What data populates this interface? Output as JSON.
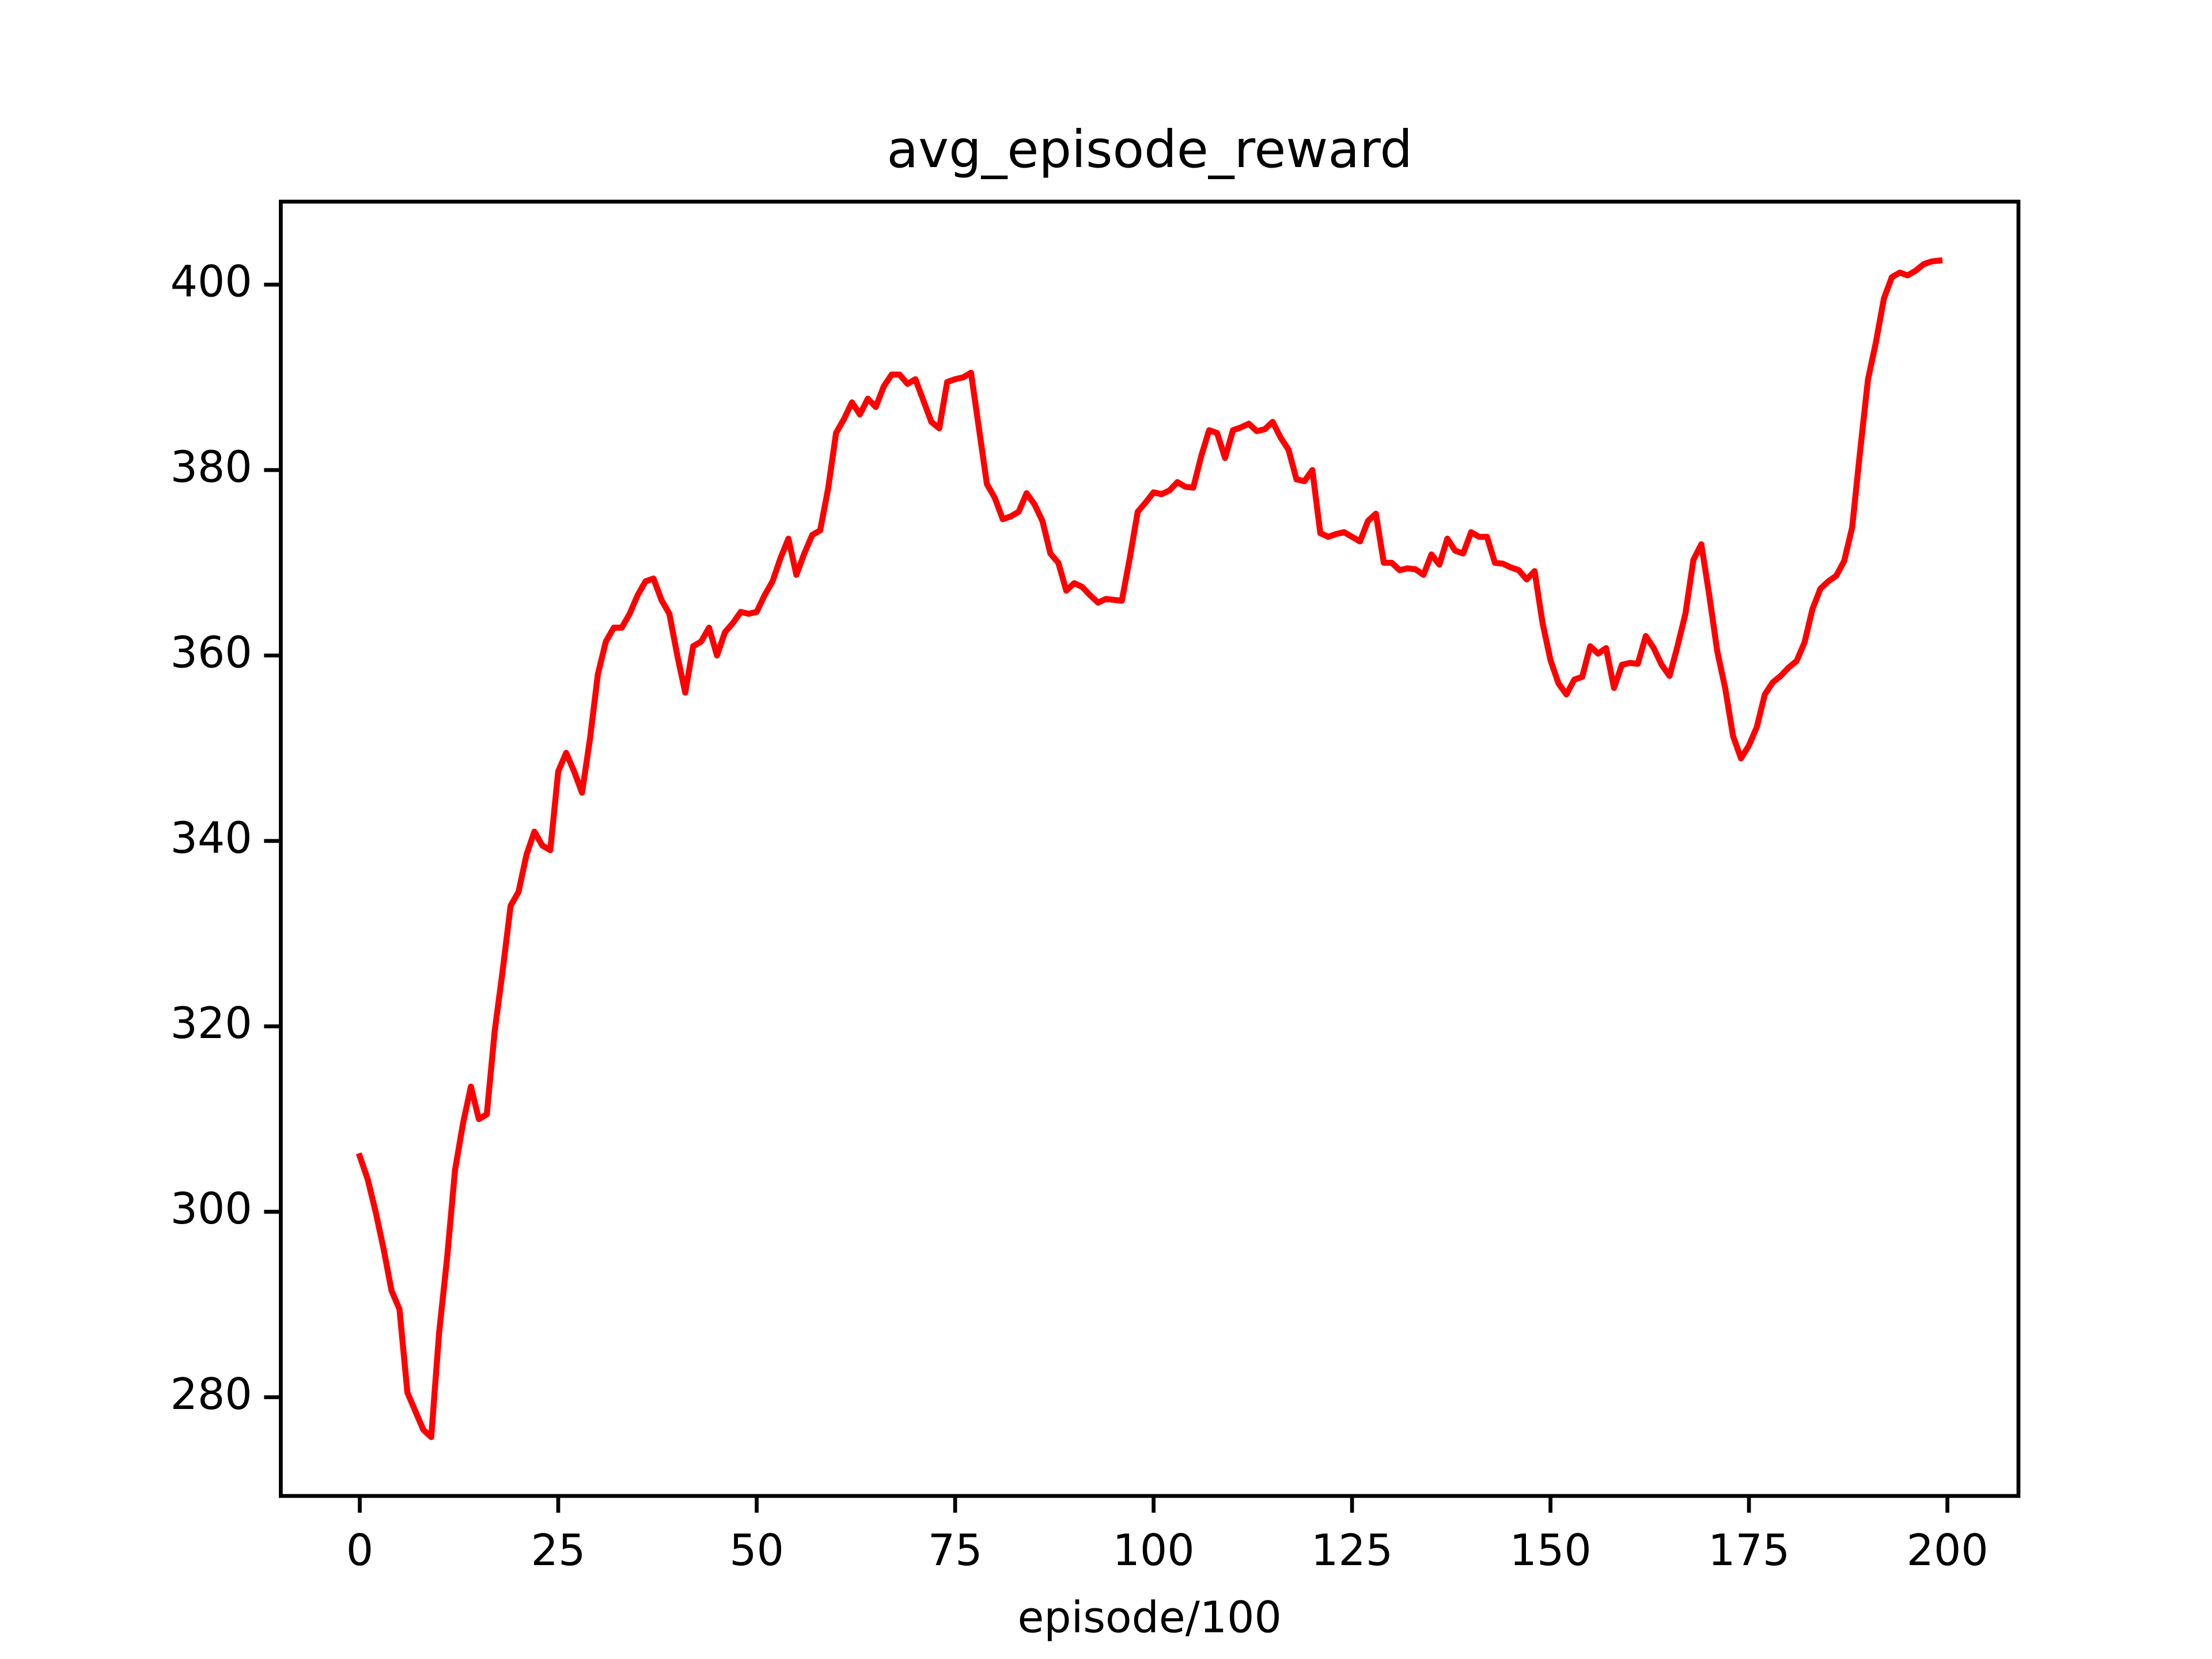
{
  "chart_data": {
    "type": "line",
    "title": "avg_episode_reward",
    "xlabel": "episode/100",
    "x": [
      0,
      1,
      2,
      3,
      4,
      5,
      6,
      7,
      8,
      9,
      10,
      11,
      12,
      13,
      14,
      15,
      16,
      17,
      18,
      19,
      20,
      21,
      22,
      23,
      24,
      25,
      26,
      27,
      28,
      29,
      30,
      31,
      32,
      33,
      34,
      35,
      36,
      37,
      38,
      39,
      40,
      41,
      42,
      43,
      44,
      45,
      46,
      47,
      48,
      49,
      50,
      51,
      52,
      53,
      54,
      55,
      56,
      57,
      58,
      59,
      60,
      61,
      62,
      63,
      64,
      65,
      66,
      67,
      68,
      69,
      70,
      71,
      72,
      73,
      74,
      75,
      76,
      77,
      78,
      79,
      80,
      81,
      82,
      83,
      84,
      85,
      86,
      87,
      88,
      89,
      90,
      91,
      92,
      93,
      94,
      95,
      96,
      97,
      98,
      99,
      100,
      101,
      102,
      103,
      104,
      105,
      106,
      107,
      108,
      109,
      110,
      111,
      112,
      113,
      114,
      115,
      116,
      117,
      118,
      119,
      120,
      121,
      122,
      123,
      124,
      125,
      126,
      127,
      128,
      129,
      130,
      131,
      132,
      133,
      134,
      135,
      136,
      137,
      138,
      139,
      140,
      141,
      142,
      143,
      144,
      145,
      146,
      147,
      148,
      149,
      150,
      151,
      152,
      153,
      154,
      155,
      156,
      157,
      158,
      159,
      160,
      161,
      162,
      163,
      164,
      165,
      166,
      167,
      168,
      169,
      170,
      171,
      172,
      173,
      174,
      175,
      176,
      177,
      178,
      179,
      180,
      181,
      182,
      183,
      184,
      185,
      186,
      187,
      188,
      189,
      190,
      191,
      192,
      193,
      194,
      195,
      196,
      197,
      198,
      199
    ],
    "series": [
      {
        "name": "avg_episode_reward",
        "color": "#ff0000",
        "values": [
          306,
          303.5,
          300,
          296,
          291.5,
          289.5,
          280.5,
          278.5,
          276.5,
          275.7,
          287,
          295,
          304.5,
          309.5,
          313.5,
          310,
          310.5,
          319.5,
          326,
          333,
          334.5,
          338.5,
          341,
          339.5,
          339,
          347.5,
          349.5,
          347.5,
          345.2,
          351,
          358,
          361.5,
          363,
          363,
          364.5,
          366.5,
          368,
          368.3,
          366,
          364.5,
          360,
          356,
          361,
          361.5,
          363,
          360,
          362.5,
          363.5,
          364.7,
          364.5,
          364.7,
          366.5,
          368,
          370.5,
          372.6,
          368.7,
          371,
          373,
          373.5,
          378,
          384,
          385.5,
          387.3,
          386,
          387.7,
          386.8,
          389,
          390.3,
          390.3,
          389.3,
          389.8,
          387.5,
          385.2,
          384.5,
          389.5,
          389.8,
          390,
          390.5,
          384.5,
          378.5,
          377,
          374.7,
          375,
          375.5,
          377.5,
          376.3,
          374.5,
          371,
          370,
          367,
          367.8,
          367.4,
          366.5,
          365.7,
          366.1,
          366,
          365.9,
          370.5,
          375.5,
          376.5,
          377.6,
          377.4,
          377.8,
          378.7,
          378.2,
          378.1,
          381.5,
          384.3,
          384,
          381.3,
          384.3,
          384.6,
          385,
          384.2,
          384.4,
          385.2,
          383.5,
          382.2,
          379,
          378.8,
          380,
          373.2,
          372.8,
          373.1,
          373.3,
          372.8,
          372.3,
          374.5,
          375.3,
          370,
          370,
          369.2,
          369.4,
          369.3,
          368.7,
          370.9,
          369.8,
          372.6,
          371.3,
          371,
          373.3,
          372.8,
          372.8,
          370,
          369.9,
          369.5,
          369.2,
          368.2,
          369.1,
          363.5,
          359.5,
          357,
          355.8,
          357.4,
          357.7,
          361,
          360.2,
          360.8,
          356.5,
          359,
          359.2,
          359.1,
          362.1,
          360.8,
          359,
          357.8,
          361,
          364.5,
          370.3,
          372,
          366.5,
          360.5,
          356.5,
          351.3,
          348.9,
          350.3,
          352.3,
          355.8,
          357.1,
          357.8,
          358.7,
          359.4,
          361.4,
          365,
          367.2,
          368,
          368.6,
          370.2,
          373.8,
          382,
          389.8,
          393.8,
          398.5,
          400.8,
          401.3,
          401,
          401.5,
          402.2,
          402.5,
          402.6
        ]
      }
    ],
    "xlim": [
      -9.95,
      208.95
    ],
    "ylim": [
      269.35,
      408.95
    ],
    "xticks": [
      0,
      25,
      50,
      75,
      100,
      125,
      150,
      175,
      200
    ],
    "yticks": [
      280,
      300,
      320,
      340,
      360,
      380,
      400
    ],
    "grid": false
  }
}
